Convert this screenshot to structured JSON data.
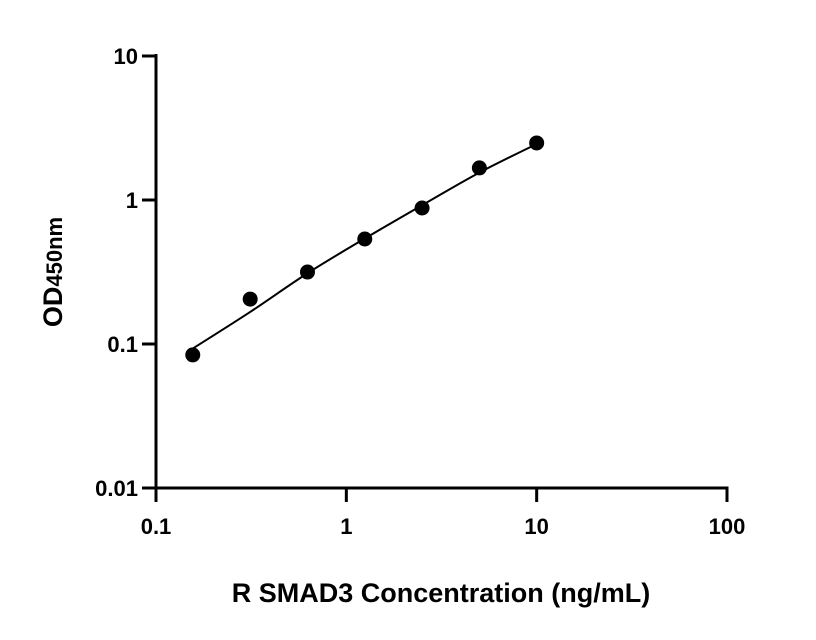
{
  "chart_data": {
    "type": "scatter",
    "title": "",
    "xlabel": "R SMAD3 Concentration (ng/mL)",
    "ylabel_main": "OD",
    "ylabel_sub": "450nm",
    "x_scale": "log",
    "y_scale": "log",
    "xlim": [
      0.1,
      100
    ],
    "ylim": [
      0.01,
      10
    ],
    "x_ticks": [
      "0.1",
      "1",
      "10",
      "100"
    ],
    "y_ticks": [
      "0.01",
      "0.1",
      "1",
      "10"
    ],
    "grid": false,
    "series": [
      {
        "type": "scatter",
        "x": [
          0.156,
          0.3125,
          0.625,
          1.25,
          2.5,
          5,
          10
        ],
        "y": [
          0.084,
          0.205,
          0.316,
          0.536,
          0.88,
          1.67,
          2.49
        ],
        "color": "#000000"
      },
      {
        "type": "line",
        "x": [
          0.156,
          0.3125,
          0.625,
          1.25,
          2.5,
          5,
          10
        ],
        "y": [
          0.093,
          0.167,
          0.31,
          0.54,
          0.92,
          1.55,
          2.45
        ],
        "color": "#000000"
      }
    ]
  }
}
